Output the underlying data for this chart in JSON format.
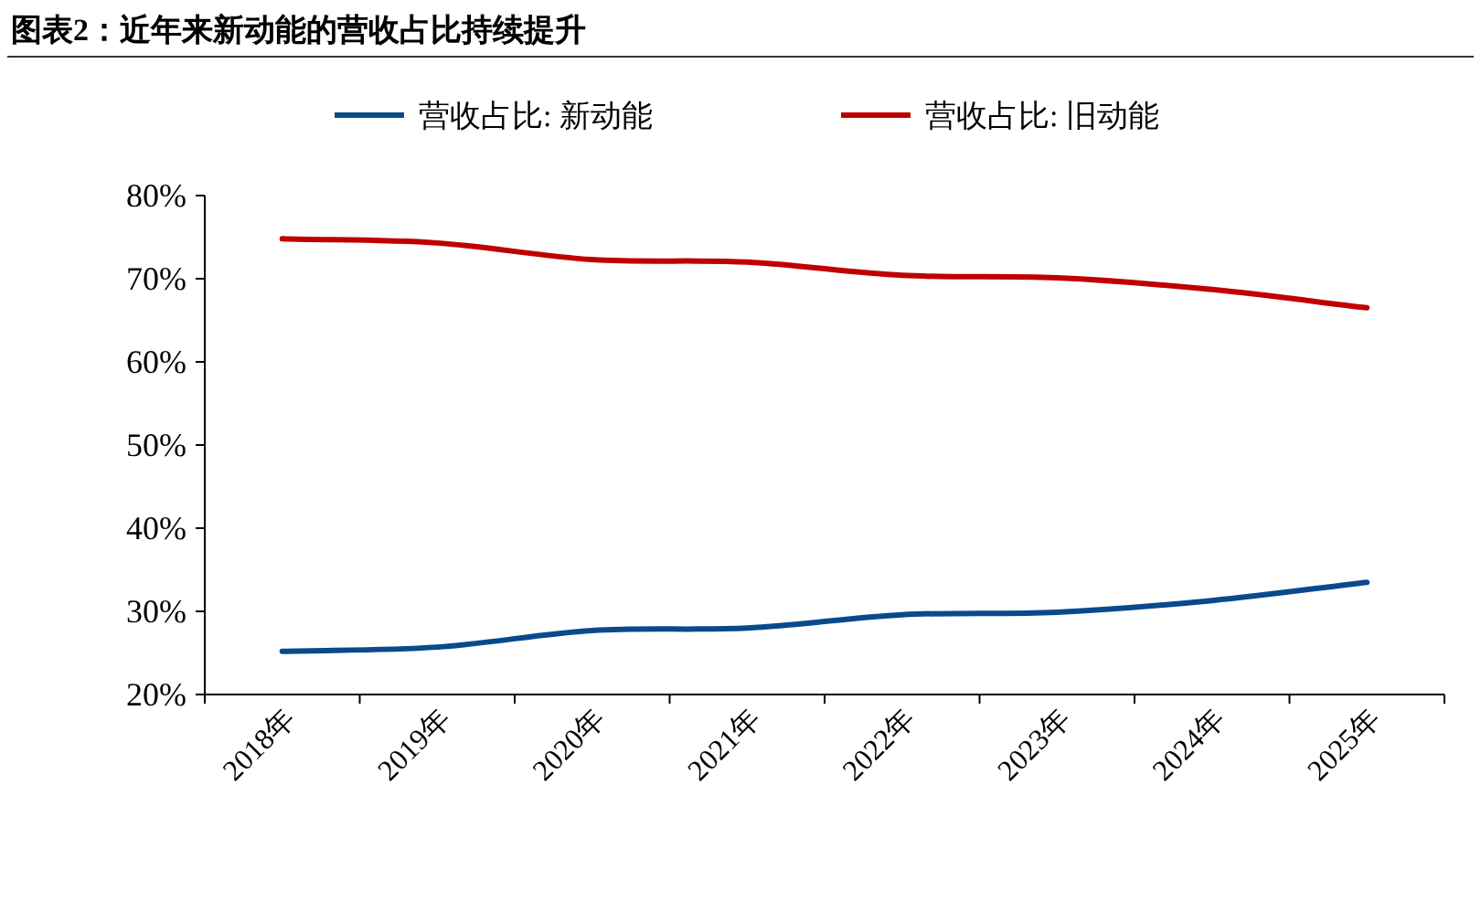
{
  "chart_data": {
    "type": "line",
    "title": "图表2：近年来新动能的营收占比持续提升",
    "categories": [
      "2018年",
      "2019年",
      "2020年",
      "2021年",
      "2022年",
      "2023年",
      "2024年",
      "2025年"
    ],
    "series": [
      {
        "name": "营收占比: 新动能",
        "color": "#0a4a8c",
        "values": [
          25.2,
          25.7,
          27.7,
          28.0,
          29.6,
          29.9,
          31.3,
          33.5
        ]
      },
      {
        "name": "营收占比: 旧动能",
        "color": "#c00000",
        "values": [
          74.8,
          74.3,
          72.3,
          72.0,
          70.4,
          70.1,
          68.7,
          66.5
        ]
      }
    ],
    "ylim": [
      20,
      80
    ],
    "yticks": [
      {
        "value": 20,
        "label": "20%"
      },
      {
        "value": 30,
        "label": "30%"
      },
      {
        "value": 40,
        "label": "40%"
      },
      {
        "value": 50,
        "label": "50%"
      },
      {
        "value": 60,
        "label": "60%"
      },
      {
        "value": 70,
        "label": "70%"
      },
      {
        "value": 80,
        "label": "80%"
      }
    ],
    "legend": "top",
    "grid": false,
    "marker": "none",
    "line_style": "solid"
  }
}
